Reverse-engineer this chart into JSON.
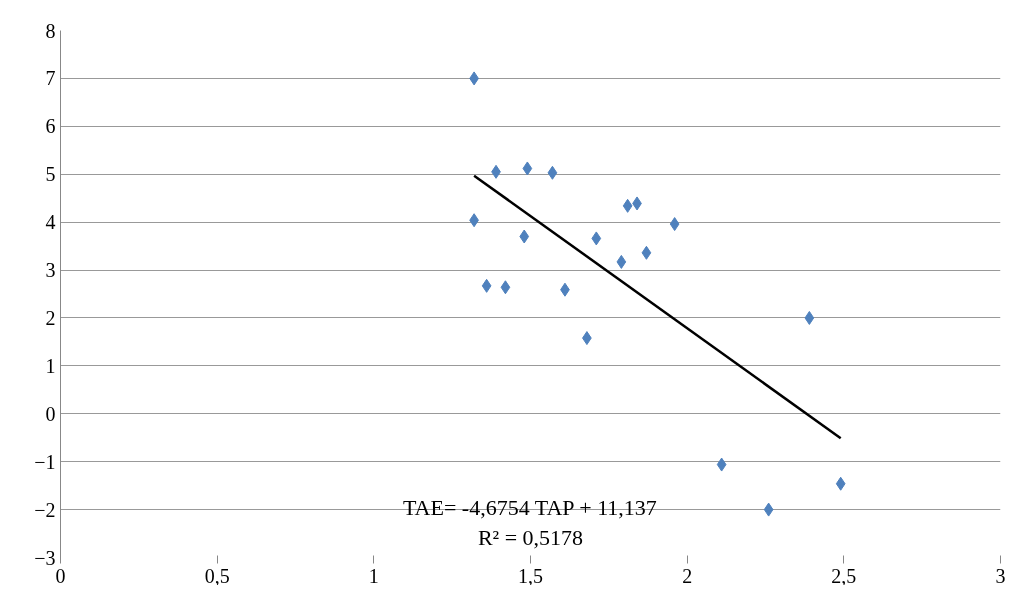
{
  "chart_data": {
    "type": "scatter",
    "marker": "diamond",
    "grid": "y",
    "xlim": [
      0,
      3
    ],
    "ylim": [
      -3,
      8
    ],
    "xticks": [
      0,
      {
        "value": 0.5,
        "label": "0,5"
      },
      1,
      {
        "value": 1.5,
        "label": "1,5"
      },
      2,
      {
        "value": 2.5,
        "label": "2,5"
      },
      3
    ],
    "yticks": [
      -3,
      -2,
      -1,
      0,
      1,
      2,
      3,
      4,
      5,
      6,
      7,
      8
    ],
    "series": [
      {
        "color": "#4f81bd",
        "x": [
          1.32,
          1.39,
          1.49,
          1.57,
          1.32,
          1.48,
          1.36,
          1.42,
          1.61,
          1.68,
          1.71,
          1.79,
          1.81,
          1.84,
          1.87,
          1.96,
          2.39,
          2.11,
          2.26,
          2.49
        ],
        "values": [
          7.0,
          5.05,
          5.12,
          5.03,
          4.04,
          3.7,
          2.67,
          2.64,
          2.59,
          1.58,
          3.66,
          3.17,
          4.34,
          4.39,
          3.36,
          3.96,
          2.0,
          -1.06,
          -2.0,
          -1.46
        ]
      },
      {
        "type": "line",
        "marker": "none",
        "color": "#000000",
        "x": [
          1.32,
          2.49
        ],
        "values": [
          4.97,
          -0.51
        ]
      }
    ],
    "annotations": [
      "TAE= -4,6754 TAP + 11,137",
      "R² = 0,5178"
    ]
  }
}
